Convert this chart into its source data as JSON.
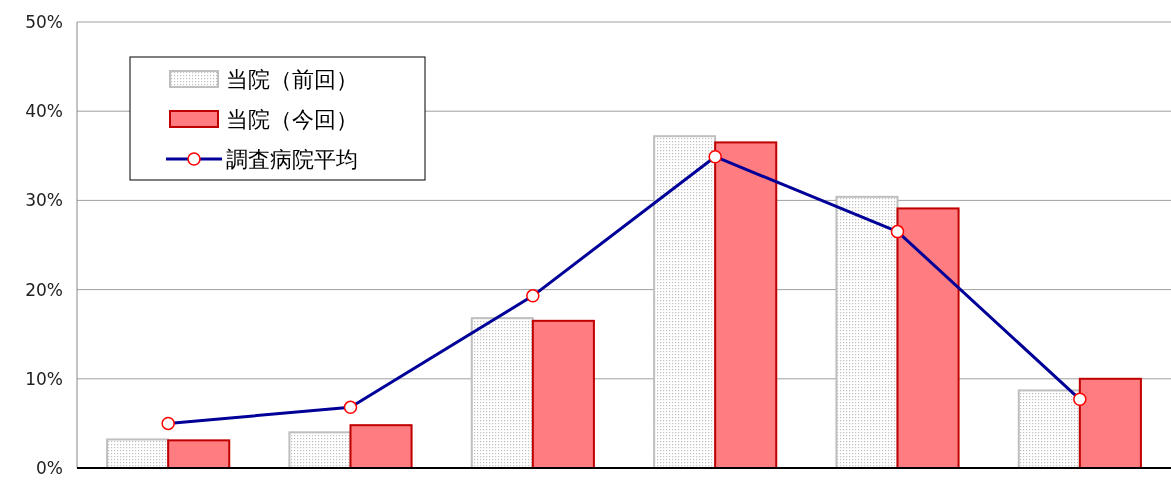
{
  "chart_data": {
    "type": "bar",
    "categories": [
      null,
      null,
      null,
      null,
      null,
      null
    ],
    "series": [
      {
        "name": "当院（前回）",
        "color": "#bfbfbf",
        "values": [
          3.2,
          4.0,
          16.8,
          37.2,
          30.4,
          8.7
        ]
      },
      {
        "name": "当院（今回）",
        "color": "#ff7c80",
        "values": [
          3.1,
          4.8,
          16.5,
          36.5,
          29.1,
          10.0
        ]
      },
      {
        "name": "調査病院平均",
        "type": "line",
        "color": "#000099",
        "marker": "circle",
        "values": [
          5.0,
          6.8,
          19.3,
          34.9,
          26.5,
          7.7
        ]
      }
    ],
    "ylim": [
      0,
      50
    ],
    "yticks": [
      {
        "value": 0,
        "label": "0%"
      },
      {
        "value": 10,
        "label": "10%"
      },
      {
        "value": 20,
        "label": "20%"
      },
      {
        "value": 30,
        "label": "30%"
      },
      {
        "value": 40,
        "label": "40%"
      },
      {
        "value": 50,
        "label": "50%"
      }
    ],
    "grid": "y",
    "legend": "top left"
  }
}
